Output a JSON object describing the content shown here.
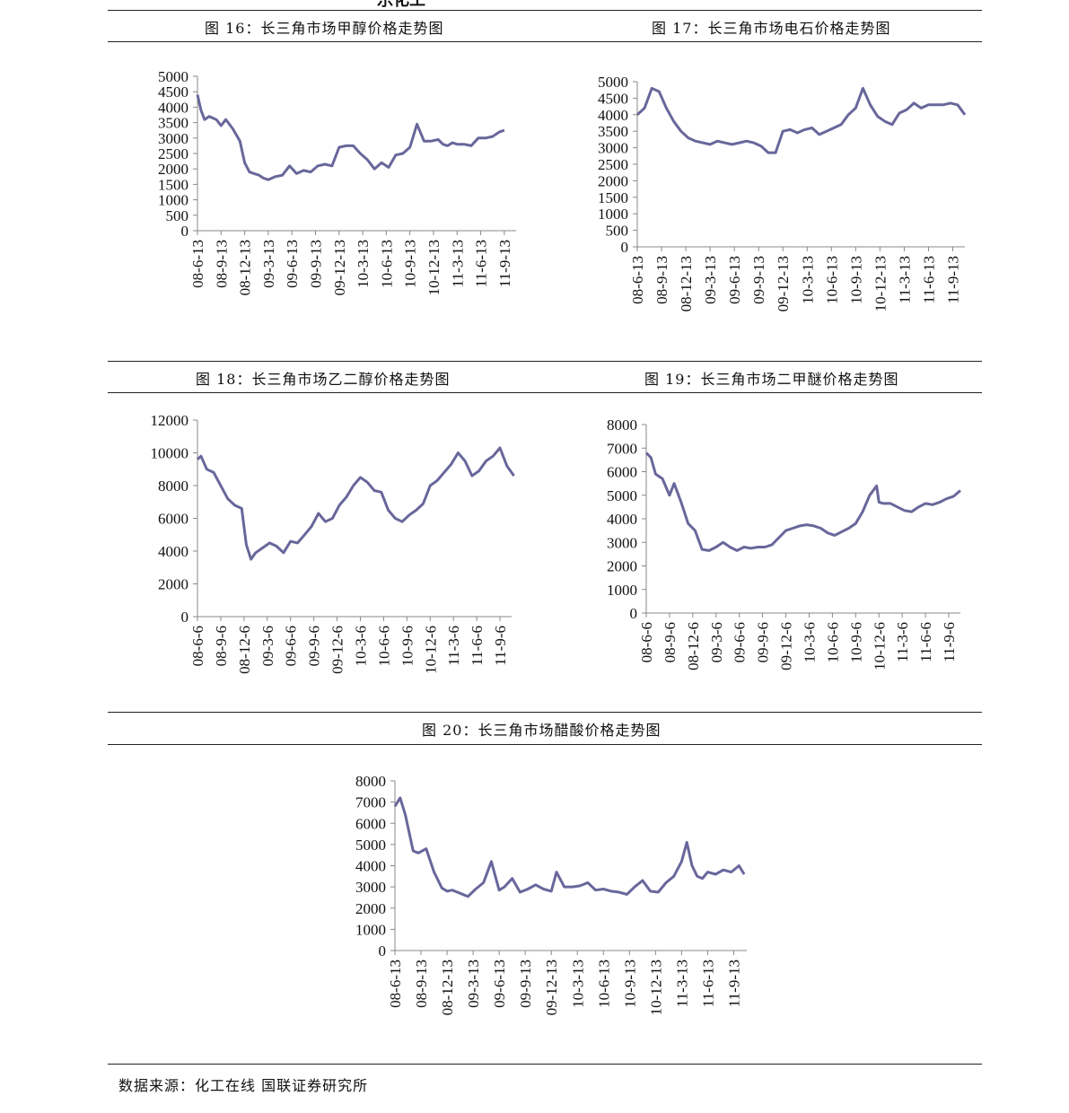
{
  "top_fragment": "乐化工",
  "source_note": "数据来源：化工在线 国联证券研究所",
  "line_color": "#68679b",
  "chart_data": [
    {
      "id": "fig16",
      "type": "line",
      "title": "图 16：长三角市场甲醇价格走势图",
      "ylim": [
        0,
        5000
      ],
      "yticks": [
        0,
        500,
        1000,
        1500,
        2000,
        2500,
        3000,
        3500,
        4000,
        4500,
        5000
      ],
      "xticks": [
        "08-6-13",
        "08-9-13",
        "08-12-13",
        "09-3-13",
        "09-6-13",
        "09-9-13",
        "09-12-13",
        "10-3-13",
        "10-6-13",
        "10-9-13",
        "10-12-13",
        "11-3-13",
        "11-6-13",
        "11-9-13"
      ],
      "x": [
        0,
        0.15,
        0.3,
        0.5,
        0.8,
        1.0,
        1.2,
        1.5,
        1.8,
        2.0,
        2.2,
        2.4,
        2.6,
        2.8,
        3.0,
        3.15,
        3.3,
        3.6,
        3.9,
        4.2,
        4.5,
        4.8,
        5.1,
        5.4,
        5.7,
        6.0,
        6.3,
        6.6,
        6.9,
        7.2,
        7.5,
        7.8,
        8.1,
        8.4,
        8.7,
        9.0,
        9.3,
        9.6,
        9.9,
        10.2,
        10.4,
        10.6,
        10.8,
        11.0,
        11.3,
        11.6,
        11.9,
        12.2,
        12.5,
        12.8,
        13.0
      ],
      "y": [
        4400,
        3900,
        3600,
        3700,
        3600,
        3400,
        3600,
        3300,
        2900,
        2200,
        1900,
        1850,
        1800,
        1700,
        1650,
        1700,
        1750,
        1800,
        2100,
        1850,
        1950,
        1900,
        2100,
        2150,
        2100,
        2700,
        2750,
        2750,
        2500,
        2300,
        2000,
        2200,
        2050,
        2450,
        2500,
        2700,
        3450,
        2900,
        2900,
        2950,
        2800,
        2750,
        2850,
        2800,
        2800,
        2750,
        3000,
        3000,
        3050,
        3200,
        3250
      ]
    },
    {
      "id": "fig17",
      "type": "line",
      "title": "图 17：长三角市场电石价格走势图",
      "ylim": [
        0,
        5000
      ],
      "yticks": [
        0,
        500,
        1000,
        1500,
        2000,
        2500,
        3000,
        3500,
        4000,
        4500,
        5000
      ],
      "xticks": [
        "08-6-13",
        "08-9-13",
        "08-12-13",
        "09-3-13",
        "09-6-13",
        "09-9-13",
        "09-12-13",
        "10-3-13",
        "10-6-13",
        "10-9-13",
        "10-12-13",
        "11-3-13",
        "11-6-13",
        "11-9-13"
      ],
      "x": [
        0,
        0.3,
        0.6,
        0.9,
        1.2,
        1.5,
        1.8,
        2.1,
        2.4,
        2.7,
        3.0,
        3.3,
        3.6,
        3.9,
        4.2,
        4.5,
        4.8,
        5.1,
        5.4,
        5.7,
        6.0,
        6.3,
        6.6,
        6.9,
        7.2,
        7.5,
        7.8,
        8.1,
        8.4,
        8.7,
        9.0,
        9.3,
        9.6,
        9.9,
        10.2,
        10.5,
        10.8,
        11.1,
        11.4,
        11.7,
        12.0,
        12.3,
        12.6,
        12.9,
        13.2,
        13.5
      ],
      "y": [
        4000,
        4200,
        4800,
        4700,
        4200,
        3800,
        3500,
        3300,
        3200,
        3150,
        3100,
        3200,
        3150,
        3100,
        3150,
        3200,
        3150,
        3050,
        2850,
        2850,
        3500,
        3550,
        3450,
        3550,
        3600,
        3400,
        3500,
        3600,
        3700,
        4000,
        4200,
        4800,
        4300,
        3950,
        3800,
        3700,
        4050,
        4150,
        4350,
        4200,
        4300,
        4300,
        4300,
        4350,
        4300,
        4000
      ]
    },
    {
      "id": "fig18",
      "type": "line",
      "title": "图 18：长三角市场乙二醇价格走势图",
      "ylim": [
        0,
        12000
      ],
      "yticks": [
        0,
        2000,
        4000,
        6000,
        8000,
        10000,
        12000
      ],
      "xticks": [
        "08-6-6",
        "08-9-6",
        "08-12-6",
        "09-3-6",
        "09-6-6",
        "09-9-6",
        "09-12-6",
        "10-3-6",
        "10-6-6",
        "10-9-6",
        "10-12-6",
        "11-3-6",
        "11-6-6",
        "11-9-6"
      ],
      "x": [
        0,
        0.15,
        0.4,
        0.7,
        1.0,
        1.3,
        1.6,
        1.9,
        2.1,
        2.3,
        2.5,
        2.8,
        3.1,
        3.4,
        3.7,
        4.0,
        4.3,
        4.6,
        4.9,
        5.2,
        5.5,
        5.8,
        6.1,
        6.4,
        6.7,
        7.0,
        7.3,
        7.6,
        7.9,
        8.2,
        8.5,
        8.8,
        9.1,
        9.4,
        9.7,
        10.0,
        10.3,
        10.6,
        10.9,
        11.2,
        11.5,
        11.8,
        12.1,
        12.4,
        12.7,
        13.0,
        13.3,
        13.6
      ],
      "y": [
        9600,
        9800,
        9000,
        8800,
        8000,
        7200,
        6800,
        6600,
        4400,
        3500,
        3900,
        4200,
        4500,
        4300,
        3900,
        4600,
        4500,
        5000,
        5500,
        6300,
        5800,
        6000,
        6800,
        7300,
        8000,
        8500,
        8200,
        7700,
        7600,
        6500,
        6000,
        5800,
        6200,
        6500,
        6900,
        8000,
        8300,
        8800,
        9300,
        10000,
        9500,
        8600,
        8900,
        9500,
        9800,
        10300,
        9200,
        8600
      ]
    },
    {
      "id": "fig19",
      "type": "line",
      "title": "图 19：长三角市场二甲醚价格走势图",
      "ylim": [
        0,
        8000
      ],
      "yticks": [
        0,
        1000,
        2000,
        3000,
        4000,
        5000,
        6000,
        7000,
        8000
      ],
      "xticks": [
        "08-6-6",
        "08-9-6",
        "08-12-6",
        "09-3-6",
        "09-6-6",
        "09-9-6",
        "09-12-6",
        "10-3-6",
        "10-6-6",
        "10-9-6",
        "10-12-6",
        "11-3-6",
        "11-6-6",
        "11-9-6"
      ],
      "x": [
        0,
        0.2,
        0.4,
        0.7,
        1.0,
        1.2,
        1.5,
        1.8,
        2.1,
        2.4,
        2.7,
        3.0,
        3.3,
        3.6,
        3.9,
        4.2,
        4.5,
        4.8,
        5.1,
        5.4,
        5.7,
        6.0,
        6.3,
        6.6,
        6.9,
        7.2,
        7.5,
        7.8,
        8.1,
        8.4,
        8.7,
        9.0,
        9.3,
        9.6,
        9.9,
        10.0,
        10.2,
        10.5,
        10.8,
        11.1,
        11.4,
        11.7,
        12.0,
        12.3,
        12.6,
        12.9,
        13.2,
        13.5
      ],
      "y": [
        6800,
        6600,
        5900,
        5700,
        5000,
        5500,
        4700,
        3800,
        3500,
        2700,
        2650,
        2800,
        3000,
        2800,
        2650,
        2800,
        2750,
        2800,
        2800,
        2900,
        3200,
        3500,
        3600,
        3700,
        3750,
        3700,
        3600,
        3400,
        3300,
        3450,
        3600,
        3800,
        4300,
        5000,
        5400,
        4700,
        4650,
        4650,
        4500,
        4350,
        4300,
        4500,
        4650,
        4600,
        4700,
        4850,
        4950,
        5200
      ]
    },
    {
      "id": "fig20",
      "type": "line",
      "title": "图 20：长三角市场醋酸价格走势图",
      "ylim": [
        0,
        8000
      ],
      "yticks": [
        0,
        1000,
        2000,
        3000,
        4000,
        5000,
        6000,
        7000,
        8000
      ],
      "xticks": [
        "08-6-13",
        "08-9-13",
        "08-12-13",
        "09-3-13",
        "09-6-13",
        "09-9-13",
        "09-12-13",
        "10-3-13",
        "10-6-13",
        "10-9-13",
        "10-12-13",
        "11-3-13",
        "11-6-13",
        "11-9-13"
      ],
      "x": [
        0,
        0.2,
        0.4,
        0.7,
        0.9,
        1.2,
        1.5,
        1.8,
        2.0,
        2.2,
        2.5,
        2.8,
        3.1,
        3.4,
        3.7,
        4.0,
        4.2,
        4.5,
        4.8,
        5.1,
        5.4,
        5.7,
        6.0,
        6.2,
        6.5,
        6.8,
        7.1,
        7.4,
        7.7,
        8.0,
        8.3,
        8.6,
        8.9,
        9.2,
        9.5,
        9.8,
        10.1,
        10.4,
        10.7,
        11.0,
        11.2,
        11.4,
        11.6,
        11.8,
        12.0,
        12.3,
        12.6,
        12.9,
        13.2,
        13.4
      ],
      "y": [
        6800,
        7200,
        6400,
        4700,
        4600,
        4800,
        3700,
        2950,
        2800,
        2850,
        2700,
        2550,
        2900,
        3200,
        4200,
        2850,
        3000,
        3400,
        2750,
        2900,
        3100,
        2900,
        2800,
        3700,
        3000,
        3000,
        3050,
        3200,
        2850,
        2900,
        2800,
        2750,
        2650,
        3000,
        3300,
        2800,
        2750,
        3200,
        3500,
        4200,
        5100,
        4000,
        3500,
        3400,
        3700,
        3600,
        3800,
        3700,
        4000,
        3600
      ]
    }
  ]
}
